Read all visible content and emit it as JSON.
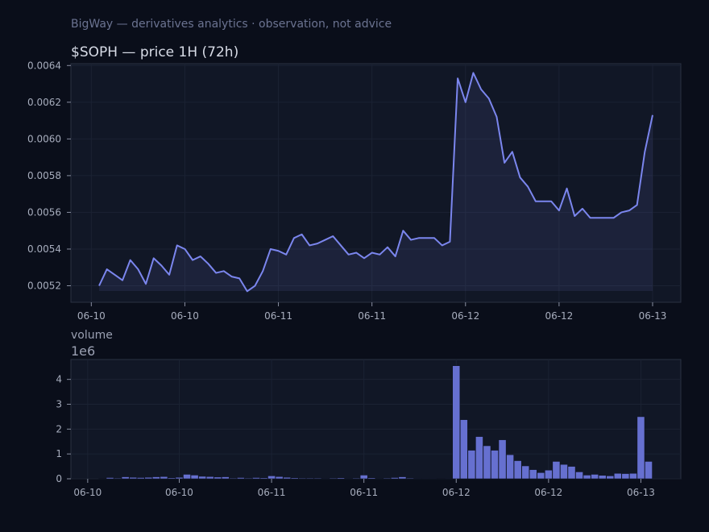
{
  "header": {
    "note": "BigWay — derivatives analytics · observation, not advice"
  },
  "colors": {
    "background": "#0a0e1a",
    "panel": "#111726",
    "line": "#7b86ee",
    "bar": "#6670d0",
    "grid": "#1b2233",
    "axis": "#2a3142"
  },
  "chart_data": [
    {
      "type": "line",
      "title": "$SOPH — price 1H (72h)",
      "xlabel": "",
      "ylabel": "",
      "x_tick_labels": [
        "06-10",
        "06-10",
        "06-11",
        "06-11",
        "06-12",
        "06-12",
        "06-13"
      ],
      "y_tick_labels": [
        "0.0052",
        "0.0054",
        "0.0056",
        "0.0058",
        "0.0060",
        "0.0062",
        "0.0064"
      ],
      "ylim": [
        0.00511,
        0.00641
      ],
      "grid": true,
      "series": [
        {
          "values": [
            0.0052,
            0.00529,
            0.00526,
            0.00523,
            0.00534,
            0.00529,
            0.00521,
            0.00535,
            0.00531,
            0.00526,
            0.00542,
            0.0054,
            0.00534,
            0.00536,
            0.00532,
            0.00527,
            0.00528,
            0.00525,
            0.00524,
            0.00517,
            0.0052,
            0.00528,
            0.0054,
            0.00539,
            0.00537,
            0.00546,
            0.00548,
            0.00542,
            0.00543,
            0.00545,
            0.00547,
            0.00542,
            0.00537,
            0.00538,
            0.00535,
            0.00538,
            0.00537,
            0.00541,
            0.00536,
            0.0055,
            0.00545,
            0.00546,
            0.00546,
            0.00546,
            0.00542,
            0.00544,
            0.00633,
            0.0062,
            0.00636,
            0.00627,
            0.00622,
            0.00612,
            0.00587,
            0.00593,
            0.00579,
            0.00574,
            0.00566,
            0.00566,
            0.00566,
            0.00561,
            0.00573,
            0.00558,
            0.00562,
            0.00557,
            0.00557,
            0.00557,
            0.00557,
            0.0056,
            0.00561,
            0.00564,
            0.00593,
            0.00613
          ]
        }
      ]
    },
    {
      "type": "bar",
      "title": "volume",
      "axis_multiplier": "1e6",
      "xlabel": "",
      "ylabel": "",
      "x_tick_labels": [
        "06-10",
        "06-10",
        "06-11",
        "06-11",
        "06-12",
        "06-12",
        "06-13"
      ],
      "y_tick_labels": [
        "0",
        "1",
        "2",
        "3",
        "4"
      ],
      "ylim": [
        0,
        4.8
      ],
      "grid": true,
      "series": [
        {
          "values": [
            0.01,
            0.05,
            0.03,
            0.08,
            0.06,
            0.05,
            0.06,
            0.08,
            0.09,
            0.04,
            0.06,
            0.18,
            0.15,
            0.1,
            0.09,
            0.07,
            0.08,
            0.03,
            0.05,
            0.03,
            0.05,
            0.04,
            0.12,
            0.09,
            0.06,
            0.04,
            0.03,
            0.03,
            0.03,
            0.02,
            0.03,
            0.04,
            0.02,
            0.03,
            0.15,
            0.04,
            0.02,
            0.03,
            0.05,
            0.08,
            0.03,
            0.02,
            0.02,
            0.02,
            0.01,
            0.02,
            4.55,
            2.38,
            1.15,
            1.7,
            1.33,
            1.15,
            1.57,
            0.97,
            0.73,
            0.52,
            0.37,
            0.25,
            0.35,
            0.7,
            0.58,
            0.5,
            0.28,
            0.15,
            0.18,
            0.14,
            0.12,
            0.22,
            0.21,
            0.22,
            2.5,
            0.7
          ]
        }
      ]
    }
  ]
}
